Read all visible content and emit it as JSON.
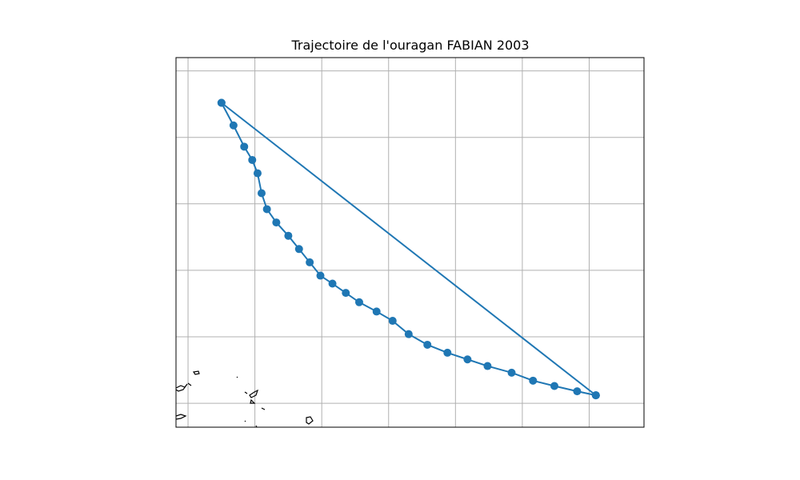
{
  "chart_data": {
    "type": "line",
    "title": "Trajectoire de l'ouragan FABIAN 2003",
    "xlabel": "",
    "ylabel": "",
    "grid": true,
    "xlim": [
      -72.4,
      -37.4
    ],
    "ylim": [
      13.2,
      41.0
    ],
    "gridlines_x": [
      -71.5,
      -66.5,
      -61.5,
      -56.5,
      -51.5,
      -46.5,
      -41.5
    ],
    "gridlines_y": [
      15.0,
      20.0,
      25.0,
      30.0,
      35.0,
      40.0
    ],
    "line_color": "#1f77b4",
    "coastline_color": "#000000",
    "series": [
      {
        "x": [
          -69.0,
          -68.1,
          -67.3,
          -66.7,
          -66.3,
          -66.0,
          -65.6,
          -64.9,
          -64.0,
          -63.2,
          -62.4,
          -61.6,
          -60.7,
          -59.7,
          -58.7,
          -57.4,
          -56.2,
          -55.0,
          -53.6,
          -52.1,
          -50.6,
          -49.1,
          -47.3,
          -45.7,
          -44.1,
          -42.4,
          -41.0,
          -41.0
        ],
        "y": [
          37.6,
          35.9,
          34.3,
          33.3,
          32.3,
          30.8,
          29.6,
          28.6,
          27.6,
          26.6,
          25.6,
          24.6,
          24.0,
          23.3,
          22.6,
          21.9,
          21.2,
          20.2,
          19.4,
          18.8,
          18.3,
          17.8,
          17.3,
          16.7,
          16.3,
          15.9,
          15.6,
          15.6
        ]
      },
      {
        "x": [
          -41.0,
          -69.0
        ],
        "y": [
          15.6,
          37.6
        ]
      }
    ]
  }
}
